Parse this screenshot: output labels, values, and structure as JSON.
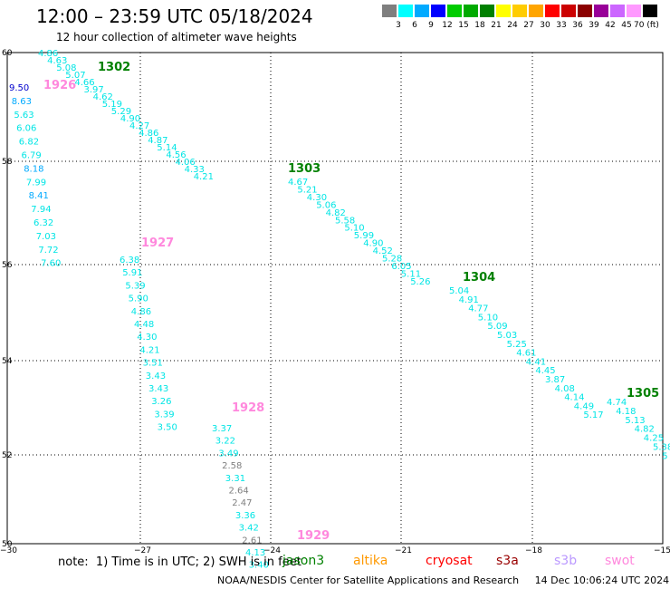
{
  "header": {
    "title": "12:00 – 23:59 UTC 05/18/2024",
    "subtitle": "12 hour collection of altimeter wave heights"
  },
  "colorbar": {
    "labels": [
      "3",
      "6",
      "9",
      "12",
      "15",
      "18",
      "21",
      "24",
      "27",
      "30",
      "33",
      "36",
      "39",
      "42",
      "45",
      "70 (ft)"
    ],
    "colors": [
      "#7f7f7f",
      "#00ffff",
      "#00aaff",
      "#0000ff",
      "#00cc00",
      "#00aa00",
      "#008000",
      "#ffff00",
      "#ffcc00",
      "#ffa500",
      "#ff0000",
      "#cc0000",
      "#8b0000",
      "#990099",
      "#cc66ff",
      "#ff99ff",
      "#000000"
    ]
  },
  "map": {
    "lat_labels": [
      "60",
      "58",
      "56",
      "54",
      "52",
      "50"
    ],
    "lon_labels": [
      "−30",
      "−27",
      "−24",
      "−21",
      "−18",
      "−15"
    ],
    "passes": [
      {
        "id": "1302",
        "color": "#008000",
        "points": [
          {
            "v": "4.86",
            "c": "#00e5e5"
          },
          {
            "v": "4.63",
            "c": "#00e5e5"
          },
          {
            "v": "5.08",
            "c": "#00e5e5"
          },
          {
            "v": "5.07",
            "c": "#00e5e5"
          },
          {
            "v": "4.66",
            "c": "#00e5e5"
          },
          {
            "v": "3.97",
            "c": "#00e5e5"
          },
          {
            "v": "4.62",
            "c": "#00e5e5"
          },
          {
            "v": "5.19",
            "c": "#00e5e5"
          },
          {
            "v": "5.29",
            "c": "#00e5e5"
          },
          {
            "v": "4.90",
            "c": "#00e5e5"
          },
          {
            "v": "4.27",
            "c": "#00e5e5"
          },
          {
            "v": "4.86",
            "c": "#00e5e5"
          },
          {
            "v": "4.87",
            "c": "#00e5e5"
          },
          {
            "v": "5.14",
            "c": "#00e5e5"
          },
          {
            "v": "4.56",
            "c": "#00e5e5"
          },
          {
            "v": "4.06",
            "c": "#00e5e5"
          },
          {
            "v": "4.33",
            "c": "#00e5e5"
          },
          {
            "v": "4.21",
            "c": "#00e5e5"
          }
        ]
      },
      {
        "id": "1303",
        "color": "#008000",
        "points": [
          {
            "v": "4.67",
            "c": "#00e5e5"
          },
          {
            "v": "5.21",
            "c": "#00e5e5"
          },
          {
            "v": "4.30",
            "c": "#00e5e5"
          },
          {
            "v": "5.06",
            "c": "#00e5e5"
          },
          {
            "v": "4.82",
            "c": "#00e5e5"
          },
          {
            "v": "5.58",
            "c": "#00e5e5"
          },
          {
            "v": "5.10",
            "c": "#00e5e5"
          },
          {
            "v": "5.99",
            "c": "#00e5e5"
          },
          {
            "v": "4.90",
            "c": "#00e5e5"
          },
          {
            "v": "4.52",
            "c": "#00e5e5"
          },
          {
            "v": "5.28",
            "c": "#00e5e5"
          },
          {
            "v": "6.05",
            "c": "#00e5e5"
          },
          {
            "v": "5.11",
            "c": "#00e5e5"
          },
          {
            "v": "5.26",
            "c": "#00e5e5"
          }
        ]
      },
      {
        "id": "1304",
        "color": "#008000",
        "points": [
          {
            "v": "5.04",
            "c": "#00e5e5"
          },
          {
            "v": "4.91",
            "c": "#00e5e5"
          },
          {
            "v": "4.77",
            "c": "#00e5e5"
          },
          {
            "v": "5.10",
            "c": "#00e5e5"
          },
          {
            "v": "5.09",
            "c": "#00e5e5"
          },
          {
            "v": "5.03",
            "c": "#00e5e5"
          },
          {
            "v": "5.25",
            "c": "#00e5e5"
          },
          {
            "v": "4.61",
            "c": "#00e5e5"
          },
          {
            "v": "4.41",
            "c": "#00e5e5"
          },
          {
            "v": "4.45",
            "c": "#00e5e5"
          },
          {
            "v": "3.87",
            "c": "#00e5e5"
          },
          {
            "v": "4.08",
            "c": "#00e5e5"
          },
          {
            "v": "4.14",
            "c": "#00e5e5"
          },
          {
            "v": "4.49",
            "c": "#00e5e5"
          },
          {
            "v": "5.17",
            "c": "#00e5e5"
          }
        ]
      },
      {
        "id": "1305",
        "color": "#008000",
        "points": [
          {
            "v": "4.74",
            "c": "#00e5e5"
          },
          {
            "v": "4.18",
            "c": "#00e5e5"
          },
          {
            "v": "5.13",
            "c": "#00e5e5"
          },
          {
            "v": "4.82",
            "c": "#00e5e5"
          },
          {
            "v": "4.25",
            "c": "#00e5e5"
          },
          {
            "v": "5.38",
            "c": "#00e5e5"
          },
          {
            "v": "5",
            "c": "#00e5e5"
          }
        ]
      },
      {
        "id": "1926",
        "color": "#ff88dd",
        "points": [
          {
            "v": "9.50",
            "c": "#0000cc"
          },
          {
            "v": "8.63",
            "c": "#00aaff"
          },
          {
            "v": "5.63",
            "c": "#00e5e5"
          },
          {
            "v": "6.06",
            "c": "#00e5e5"
          },
          {
            "v": "6.82",
            "c": "#00e5e5"
          },
          {
            "v": "6.79",
            "c": "#00e5e5"
          },
          {
            "v": "8.18",
            "c": "#00aaff"
          },
          {
            "v": "7.99",
            "c": "#00e5e5"
          },
          {
            "v": "8.41",
            "c": "#00aaff"
          },
          {
            "v": "7.94",
            "c": "#00e5e5"
          },
          {
            "v": "6.32",
            "c": "#00e5e5"
          },
          {
            "v": "7.03",
            "c": "#00e5e5"
          },
          {
            "v": "7.72",
            "c": "#00e5e5"
          },
          {
            "v": "7.60",
            "c": "#00e5e5"
          }
        ]
      },
      {
        "id": "1927",
        "color": "#ff88dd",
        "points": [
          {
            "v": "6.38",
            "c": "#00e5e5"
          },
          {
            "v": "5.91",
            "c": "#00e5e5"
          },
          {
            "v": "5.39",
            "c": "#00e5e5"
          },
          {
            "v": "5.90",
            "c": "#00e5e5"
          },
          {
            "v": "4.86",
            "c": "#00e5e5"
          },
          {
            "v": "4.48",
            "c": "#00e5e5"
          },
          {
            "v": "4.30",
            "c": "#00e5e5"
          },
          {
            "v": "4.21",
            "c": "#00e5e5"
          },
          {
            "v": "3.51",
            "c": "#00e5e5"
          },
          {
            "v": "3.43",
            "c": "#00e5e5"
          },
          {
            "v": "3.43",
            "c": "#00e5e5"
          },
          {
            "v": "3.26",
            "c": "#00e5e5"
          },
          {
            "v": "3.39",
            "c": "#00e5e5"
          },
          {
            "v": "3.50",
            "c": "#00e5e5"
          }
        ]
      },
      {
        "id": "1928",
        "color": "#ff88dd",
        "points": [
          {
            "v": "3.37",
            "c": "#00e5e5"
          },
          {
            "v": "3.22",
            "c": "#00e5e5"
          },
          {
            "v": "3.49",
            "c": "#00e5e5"
          },
          {
            "v": "2.58",
            "c": "#7f7f7f"
          },
          {
            "v": "3.31",
            "c": "#00e5e5"
          },
          {
            "v": "2.64",
            "c": "#7f7f7f"
          },
          {
            "v": "2.47",
            "c": "#7f7f7f"
          },
          {
            "v": "3.36",
            "c": "#00e5e5"
          },
          {
            "v": "3.42",
            "c": "#00e5e5"
          },
          {
            "v": "2.61",
            "c": "#7f7f7f"
          },
          {
            "v": "4.13",
            "c": "#00e5e5"
          },
          {
            "v": "3.40",
            "c": "#00e5e5"
          }
        ]
      },
      {
        "id": "1929",
        "color": "#ff88dd",
        "points": []
      }
    ]
  },
  "footer": {
    "note": "note:  1) Time is in UTC; 2) SWH is in feet",
    "satellites": [
      {
        "name": "jason3",
        "color": "#008000"
      },
      {
        "name": "altika",
        "color": "#ff9900"
      },
      {
        "name": "cryosat",
        "color": "#ff0000"
      },
      {
        "name": "s3a",
        "color": "#990000"
      },
      {
        "name": "s3b",
        "color": "#bb99ff"
      },
      {
        "name": "swot",
        "color": "#ff88dd"
      }
    ],
    "credit": "NOAA/NESDIS Center for Satellite Applications and Research     14 Dec 10:06:24 UTC 2024"
  }
}
